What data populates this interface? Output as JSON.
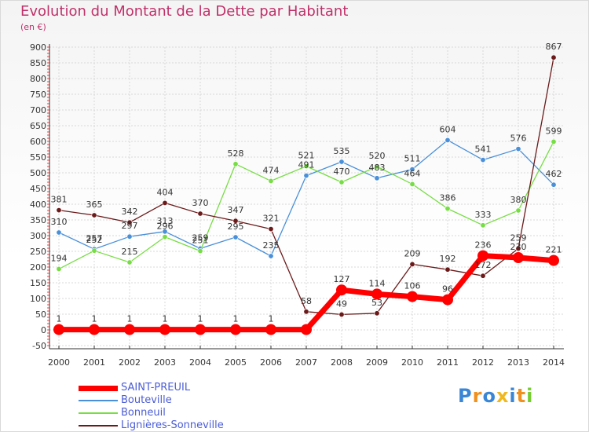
{
  "header": {
    "title": "Evolution du Montant de la Dette par Habitant",
    "subtitle": "(en €)"
  },
  "chart_data": {
    "type": "line",
    "title": "Evolution du Montant de la Dette par Habitant",
    "ylabel": "(en €)",
    "xlabel": "",
    "x": [
      "2000",
      "2001",
      "2002",
      "2003",
      "2004",
      "2005",
      "2006",
      "2007",
      "2008",
      "2009",
      "2010",
      "2011",
      "2012",
      "2013",
      "2014"
    ],
    "yticks": [
      -50,
      0,
      50,
      100,
      150,
      200,
      250,
      300,
      350,
      400,
      450,
      500,
      550,
      600,
      650,
      700,
      750,
      800,
      850,
      900
    ],
    "ylim": [
      -50,
      900
    ],
    "grid": true,
    "legend_position": "bottom-left",
    "series": [
      {
        "name": "SAINT-PREUIL",
        "color": "#ff0000",
        "values": [
          1,
          1,
          1,
          1,
          1,
          1,
          1,
          1,
          127,
          114,
          106,
          96,
          236,
          230,
          221
        ],
        "labels": [
          "1",
          "1",
          "1",
          "1",
          "1",
          "1",
          "1",
          "",
          "127",
          "114",
          "106",
          "96",
          "236",
          "230",
          "221"
        ]
      },
      {
        "name": "Bouteville",
        "color": "#4a90d9",
        "values": [
          310,
          257,
          297,
          313,
          259,
          295,
          235,
          491,
          535,
          483,
          511,
          604,
          541,
          576,
          462
        ],
        "labels": [
          "310",
          "257",
          "297",
          "313",
          "259",
          "295",
          "235",
          "491",
          "535",
          "483",
          "511",
          "604",
          "541",
          "576",
          "462"
        ]
      },
      {
        "name": "Bonneuil",
        "color": "#77dd44",
        "values": [
          194,
          252,
          215,
          296,
          251,
          528,
          474,
          521,
          470,
          520,
          464,
          386,
          333,
          380,
          599
        ],
        "labels": [
          "194",
          "252",
          "215",
          "296",
          "251",
          "528",
          "474",
          "521",
          "470",
          "520",
          "464",
          "386",
          "333",
          "380",
          "599"
        ]
      },
      {
        "name": "Lignières-Sonneville",
        "color": "#6b1a1a",
        "values": [
          381,
          365,
          342,
          404,
          370,
          347,
          321,
          58,
          49,
          53,
          209,
          192,
          172,
          259,
          867
        ],
        "labels": [
          "381",
          "365",
          "342",
          "404",
          "370",
          "347",
          "321",
          "58",
          "49",
          "53",
          "209",
          "192",
          "172",
          "259",
          "867"
        ]
      }
    ]
  },
  "logo": {
    "letters": [
      "P",
      "r",
      "o",
      "x",
      "i",
      "t",
      "i"
    ],
    "colors": [
      "#3a86d6",
      "#f0901e",
      "#3a86d6",
      "#f0b81e",
      "#3a86d6",
      "#f0901e",
      "#77cc33"
    ]
  }
}
